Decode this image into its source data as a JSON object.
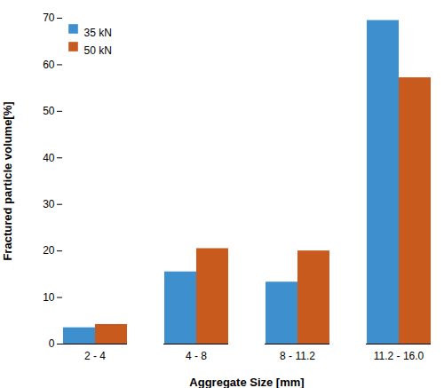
{
  "chart_data": {
    "type": "bar",
    "categories": [
      "2 - 4",
      "4 - 8",
      "8 - 11.2",
      "11.2 - 16.0"
    ],
    "series": [
      {
        "name": "35 kN",
        "color": "#3d8fce",
        "values": [
          3.5,
          15.5,
          13.3,
          69.5
        ]
      },
      {
        "name": "50 kN",
        "color": "#c85a1e",
        "values": [
          4.2,
          20.5,
          20.0,
          57.2
        ]
      }
    ],
    "xlabel": "Aggregate Size [mm]",
    "ylabel": "Fractured particle volume[%]",
    "ylim": [
      0,
      70
    ],
    "yticks": [
      0,
      10,
      20,
      30,
      40,
      50,
      60,
      70
    ],
    "grid": false,
    "legend": "upper left"
  }
}
